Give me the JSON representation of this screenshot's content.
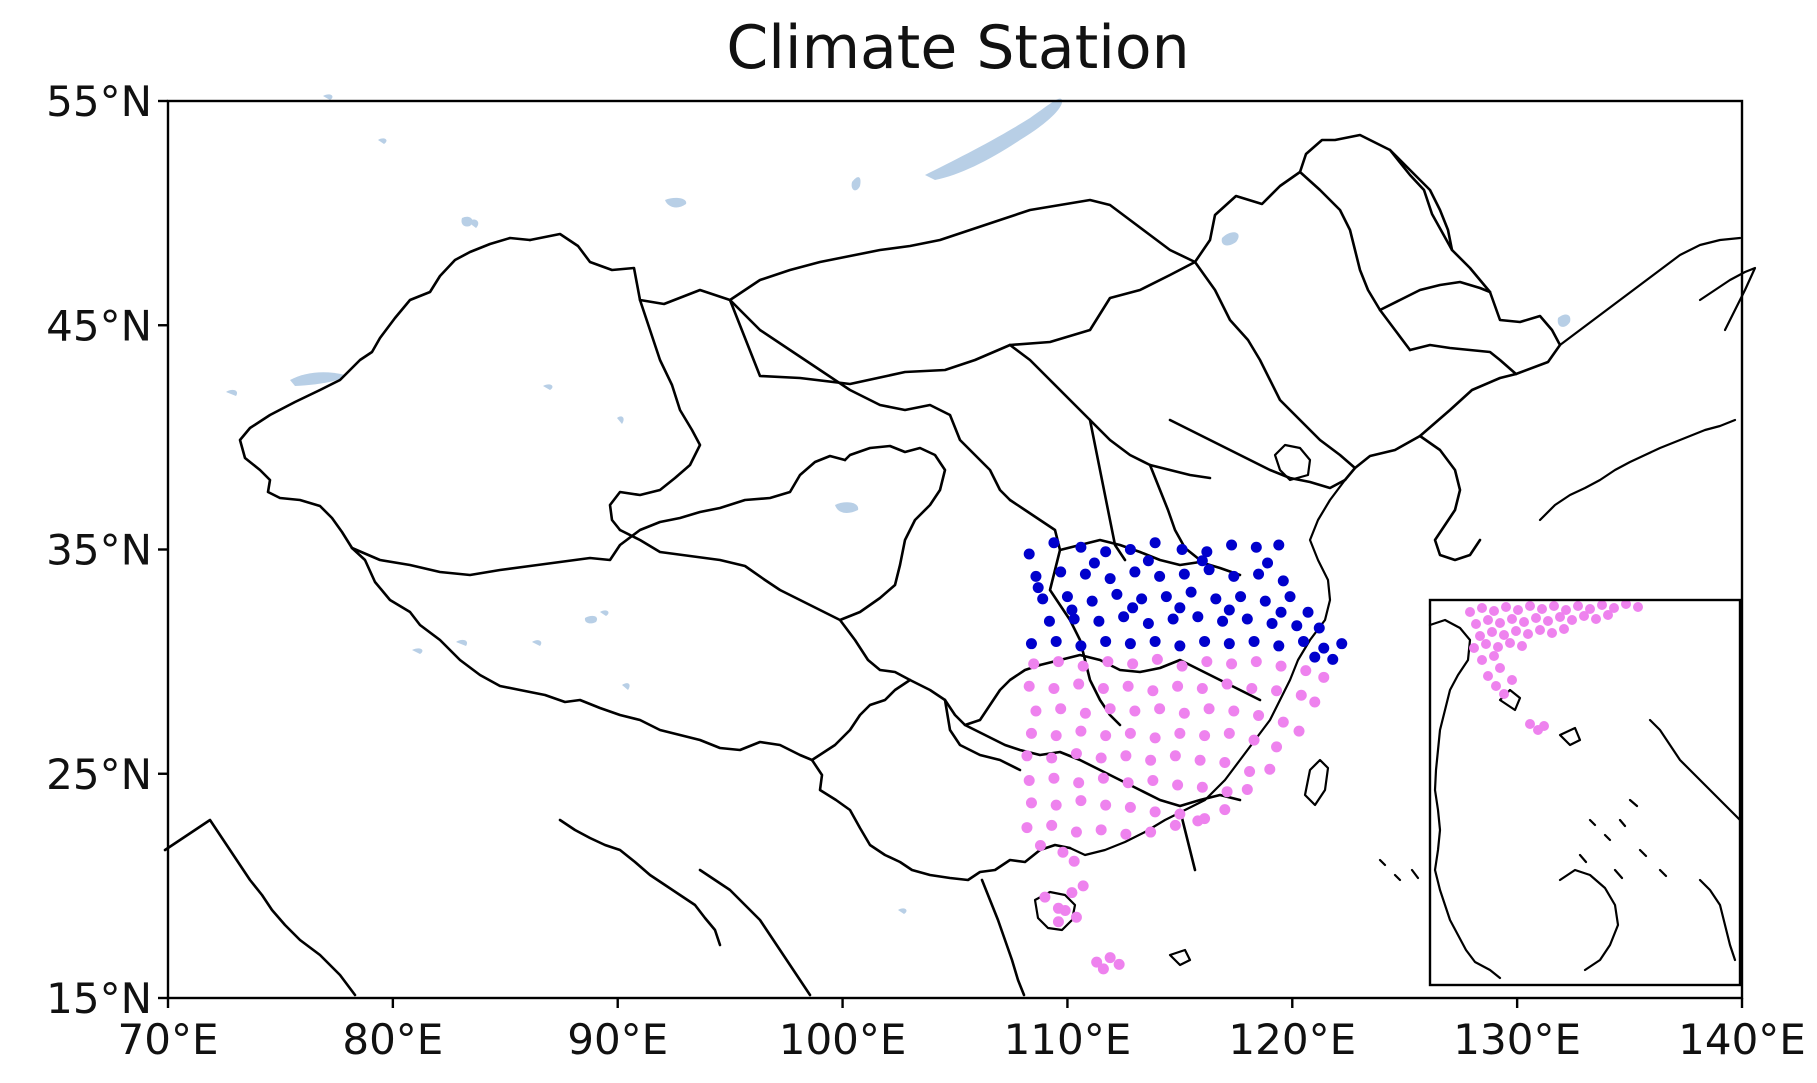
{
  "title": "Climate Station",
  "x_axis": {
    "ticks": [
      "70°E",
      "80°E",
      "90°E",
      "100°E",
      "110°E",
      "120°E",
      "130°E",
      "140°E"
    ],
    "values": [
      70,
      80,
      90,
      100,
      110,
      120,
      130,
      140
    ],
    "range": [
      70,
      140
    ]
  },
  "y_axis": {
    "ticks": [
      "55°N",
      "45°N",
      "35°N",
      "25°N",
      "15°N"
    ],
    "values": [
      55,
      45,
      35,
      25,
      15
    ],
    "range": [
      15,
      55
    ]
  },
  "colors": {
    "north_group": "#0000cc",
    "south_group": "#ee82ee",
    "lakes": "#b8cfe6",
    "borders": "#000000"
  },
  "inset": {
    "present": true,
    "location": "bottom-right"
  },
  "stations": {
    "north": [
      [
        108.3,
        34.8
      ],
      [
        109.4,
        35.3
      ],
      [
        110.6,
        35.1
      ],
      [
        111.7,
        34.9
      ],
      [
        112.8,
        35.0
      ],
      [
        113.9,
        35.3
      ],
      [
        115.1,
        35.0
      ],
      [
        116.2,
        34.9
      ],
      [
        117.3,
        35.2
      ],
      [
        118.4,
        35.1
      ],
      [
        119.4,
        35.2
      ],
      [
        108.6,
        33.8
      ],
      [
        109.7,
        34.0
      ],
      [
        110.8,
        33.9
      ],
      [
        111.9,
        33.7
      ],
      [
        113.0,
        34.0
      ],
      [
        114.1,
        33.8
      ],
      [
        115.2,
        33.9
      ],
      [
        116.3,
        34.1
      ],
      [
        117.4,
        33.8
      ],
      [
        118.5,
        33.9
      ],
      [
        119.6,
        33.6
      ],
      [
        108.9,
        32.8
      ],
      [
        110.0,
        32.9
      ],
      [
        111.1,
        32.7
      ],
      [
        112.2,
        33.0
      ],
      [
        113.3,
        32.8
      ],
      [
        114.4,
        32.9
      ],
      [
        115.5,
        33.1
      ],
      [
        116.6,
        32.8
      ],
      [
        117.7,
        32.9
      ],
      [
        118.8,
        32.7
      ],
      [
        119.9,
        32.9
      ],
      [
        120.7,
        32.2
      ],
      [
        109.2,
        31.8
      ],
      [
        110.3,
        31.9
      ],
      [
        111.4,
        31.8
      ],
      [
        112.5,
        32.0
      ],
      [
        113.6,
        31.7
      ],
      [
        114.7,
        31.9
      ],
      [
        115.8,
        32.0
      ],
      [
        116.9,
        31.8
      ],
      [
        118.0,
        31.9
      ],
      [
        119.1,
        31.7
      ],
      [
        120.2,
        31.6
      ],
      [
        121.2,
        31.5
      ],
      [
        108.4,
        30.8
      ],
      [
        109.5,
        30.9
      ],
      [
        110.6,
        30.7
      ],
      [
        111.7,
        30.9
      ],
      [
        112.8,
        30.8
      ],
      [
        113.9,
        30.9
      ],
      [
        115.0,
        30.7
      ],
      [
        116.1,
        30.9
      ],
      [
        117.2,
        30.8
      ],
      [
        118.3,
        30.9
      ],
      [
        119.4,
        30.7
      ],
      [
        120.5,
        30.9
      ],
      [
        121.4,
        30.6
      ],
      [
        122.2,
        30.8
      ],
      [
        108.7,
        33.3
      ],
      [
        111.2,
        34.4
      ],
      [
        113.6,
        34.5
      ],
      [
        116.0,
        34.5
      ],
      [
        118.9,
        34.4
      ],
      [
        110.2,
        32.3
      ],
      [
        112.9,
        32.4
      ],
      [
        115.0,
        32.4
      ],
      [
        117.2,
        32.3
      ],
      [
        119.5,
        32.2
      ],
      [
        121.0,
        30.2
      ],
      [
        121.8,
        30.1
      ]
    ],
    "south": [
      [
        108.5,
        29.9
      ],
      [
        109.6,
        30.0
      ],
      [
        110.7,
        29.8
      ],
      [
        111.8,
        30.0
      ],
      [
        112.9,
        29.9
      ],
      [
        114.0,
        30.1
      ],
      [
        115.1,
        29.8
      ],
      [
        116.2,
        30.0
      ],
      [
        117.3,
        29.9
      ],
      [
        118.4,
        30.0
      ],
      [
        119.5,
        29.8
      ],
      [
        120.6,
        29.6
      ],
      [
        121.4,
        29.3
      ],
      [
        108.3,
        28.9
      ],
      [
        109.4,
        28.8
      ],
      [
        110.5,
        29.0
      ],
      [
        111.6,
        28.8
      ],
      [
        112.7,
        28.9
      ],
      [
        113.8,
        28.7
      ],
      [
        114.9,
        28.9
      ],
      [
        116.0,
        28.8
      ],
      [
        117.1,
        29.0
      ],
      [
        118.2,
        28.8
      ],
      [
        119.3,
        28.7
      ],
      [
        120.4,
        28.5
      ],
      [
        121.0,
        28.2
      ],
      [
        108.6,
        27.8
      ],
      [
        109.7,
        27.9
      ],
      [
        110.8,
        27.7
      ],
      [
        111.9,
        27.9
      ],
      [
        113.0,
        27.8
      ],
      [
        114.1,
        27.9
      ],
      [
        115.2,
        27.7
      ],
      [
        116.3,
        27.9
      ],
      [
        117.4,
        27.8
      ],
      [
        118.5,
        27.6
      ],
      [
        119.6,
        27.3
      ],
      [
        120.3,
        26.9
      ],
      [
        108.4,
        26.8
      ],
      [
        109.5,
        26.7
      ],
      [
        110.6,
        26.9
      ],
      [
        111.7,
        26.7
      ],
      [
        112.8,
        26.8
      ],
      [
        113.9,
        26.6
      ],
      [
        115.0,
        26.8
      ],
      [
        116.1,
        26.7
      ],
      [
        117.2,
        26.8
      ],
      [
        118.3,
        26.5
      ],
      [
        119.3,
        26.2
      ],
      [
        108.2,
        25.8
      ],
      [
        109.3,
        25.7
      ],
      [
        110.4,
        25.9
      ],
      [
        111.5,
        25.7
      ],
      [
        112.6,
        25.8
      ],
      [
        113.7,
        25.6
      ],
      [
        114.8,
        25.8
      ],
      [
        115.9,
        25.6
      ],
      [
        117.0,
        25.5
      ],
      [
        118.1,
        25.1
      ],
      [
        119.0,
        25.2
      ],
      [
        108.3,
        24.7
      ],
      [
        109.4,
        24.8
      ],
      [
        110.5,
        24.6
      ],
      [
        111.6,
        24.8
      ],
      [
        112.7,
        24.6
      ],
      [
        113.8,
        24.7
      ],
      [
        114.9,
        24.5
      ],
      [
        116.0,
        24.4
      ],
      [
        117.1,
        24.2
      ],
      [
        118.0,
        24.3
      ],
      [
        108.4,
        23.7
      ],
      [
        109.5,
        23.6
      ],
      [
        110.6,
        23.8
      ],
      [
        111.7,
        23.6
      ],
      [
        112.8,
        23.5
      ],
      [
        113.9,
        23.3
      ],
      [
        115.0,
        23.2
      ],
      [
        116.1,
        23.0
      ],
      [
        117.0,
        23.4
      ],
      [
        108.2,
        22.6
      ],
      [
        109.3,
        22.7
      ],
      [
        110.4,
        22.4
      ],
      [
        111.5,
        22.5
      ],
      [
        112.6,
        22.3
      ],
      [
        113.7,
        22.4
      ],
      [
        114.8,
        22.7
      ],
      [
        115.8,
        22.9
      ],
      [
        108.8,
        21.8
      ],
      [
        109.8,
        21.5
      ],
      [
        110.3,
        21.1
      ],
      [
        109.0,
        19.5
      ],
      [
        109.6,
        19.0
      ],
      [
        110.2,
        19.7
      ],
      [
        110.7,
        20.0
      ],
      [
        110.4,
        18.6
      ],
      [
        109.6,
        18.4
      ],
      [
        109.9,
        18.9
      ],
      [
        111.3,
        16.6
      ],
      [
        111.9,
        16.8
      ],
      [
        112.3,
        16.5
      ],
      [
        111.6,
        16.3
      ]
    ]
  }
}
